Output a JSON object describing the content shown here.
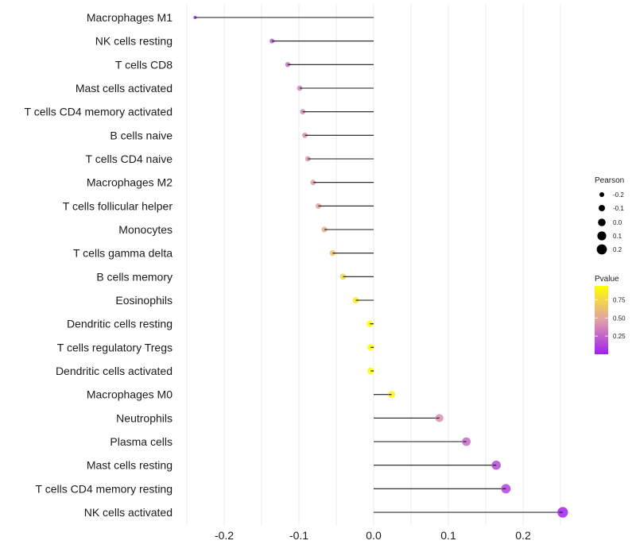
{
  "chart_data": {
    "type": "lollipop",
    "title": "",
    "xlabel": "",
    "ylabel": "",
    "xlim": [
      -0.25,
      0.25
    ],
    "x_ticks": [
      -0.2,
      -0.1,
      0.0,
      0.1,
      0.2
    ],
    "x_tick_labels": [
      "-0.2",
      "-0.1",
      "0.0",
      "0.1",
      "0.2"
    ],
    "grid": true,
    "baseline": 0.0,
    "categories": [
      "Macrophages M1",
      "NK cells resting",
      "T cells CD8",
      "Mast cells activated",
      "T cells CD4 memory activated",
      "B cells naive",
      "T cells CD4 naive",
      "Macrophages M2",
      "T cells follicular helper",
      "Monocytes",
      "T cells gamma delta",
      "B cells memory",
      "Eosinophils",
      "Dendritic cells resting",
      "T cells regulatory  Tregs ",
      "Dendritic cells activated",
      "Macrophages M0",
      "Neutrophils",
      "Plasma cells",
      "Mast cells resting",
      "T cells CD4 memory resting",
      "NK cells activated"
    ],
    "pearson": [
      -0.239,
      -0.136,
      -0.115,
      -0.099,
      -0.095,
      -0.092,
      -0.088,
      -0.081,
      -0.074,
      -0.066,
      -0.055,
      -0.041,
      -0.024,
      -0.005,
      -0.004,
      -0.004,
      0.024,
      0.088,
      0.124,
      0.164,
      0.177,
      0.253
    ],
    "pvalue": [
      0.01,
      0.2,
      0.3,
      0.38,
      0.4,
      0.42,
      0.44,
      0.47,
      0.5,
      0.56,
      0.66,
      0.75,
      0.85,
      0.93,
      0.93,
      0.93,
      0.86,
      0.42,
      0.28,
      0.15,
      0.12,
      0.01
    ],
    "legend": {
      "size": {
        "title": "Pearson",
        "labels": [
          "-0.2",
          "-0.1",
          "0.0",
          "0.1",
          "0.2"
        ],
        "values": [
          -0.2,
          -0.1,
          0.0,
          0.1,
          0.2
        ]
      },
      "color": {
        "title": "Pvalue",
        "labels": [
          "0.75",
          "0.50",
          "0.25"
        ],
        "values": [
          0.75,
          0.5,
          0.25
        ],
        "range": [
          0.0,
          0.94
        ],
        "low_color": "#A020F0",
        "mid_color": "#E0A0A8",
        "high_color": "#FFFF00"
      },
      "position": "right"
    }
  }
}
